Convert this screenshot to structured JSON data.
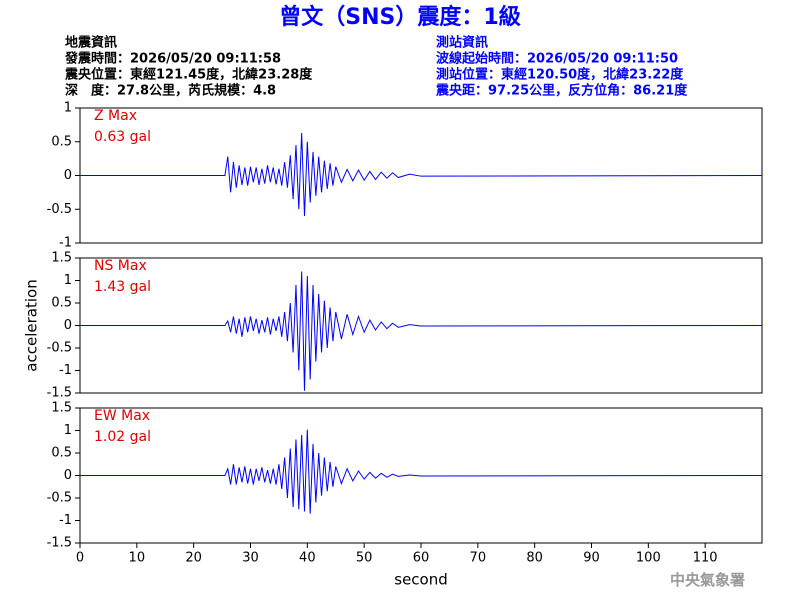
{
  "header": {
    "title": "曾文（SNS）震度：1級",
    "left": [
      "地震資訊",
      "發震時間：2026/05/20 09:11:58",
      "震央位置：東經121.45度，北緯23.28度",
      "深　度：27.8公里，芮氏規模：4.8"
    ],
    "right": [
      "測站資訊",
      "波線起始時間：2026/05/20 09:11:50",
      "測站位置：東經120.50度，北緯23.22度",
      "震央距：97.25公里，反方位角：86.21度"
    ],
    "footer": "中央氣象署"
  },
  "chart_data": [
    {
      "type": "line",
      "annotations": [
        "Z Max",
        "0.63 gal"
      ],
      "color": "#0000ff",
      "x": [
        0,
        25.5,
        26,
        26.5,
        27,
        27.5,
        28,
        28.5,
        29,
        29.5,
        30,
        30.5,
        31,
        31.5,
        32,
        32.5,
        33,
        33.5,
        34,
        34.5,
        35,
        35.5,
        36,
        36.5,
        37,
        37.5,
        38,
        38.5,
        39,
        39.5,
        40,
        40.5,
        41,
        41.5,
        42,
        42.5,
        43,
        43.5,
        44,
        44.5,
        45,
        46,
        47,
        48,
        49,
        50,
        51,
        52,
        53,
        54,
        55,
        56,
        58,
        60,
        120
      ],
      "values": [
        0,
        0,
        0.28,
        -0.25,
        0.2,
        -0.18,
        0.15,
        -0.14,
        0.12,
        -0.15,
        0.13,
        -0.1,
        0.12,
        -0.14,
        0.1,
        -0.12,
        0.15,
        -0.1,
        0.12,
        -0.13,
        0.1,
        -0.15,
        0.2,
        -0.18,
        0.3,
        -0.35,
        0.45,
        -0.5,
        0.63,
        -0.6,
        0.5,
        -0.4,
        0.35,
        -0.3,
        0.28,
        -0.25,
        0.22,
        -0.2,
        0.18,
        -0.15,
        0.13,
        -0.1,
        0.09,
        -0.08,
        0.08,
        -0.07,
        0.06,
        -0.06,
        0.05,
        -0.04,
        0.04,
        -0.03,
        0.02,
        -0.01,
        0
      ],
      "xlim": [
        0,
        120
      ],
      "ylim": [
        -1,
        1
      ],
      "yticks": [
        -1,
        -0.5,
        0,
        0.5,
        1
      ]
    },
    {
      "type": "line",
      "annotations": [
        "NS Max",
        "1.43 gal"
      ],
      "color": "#0000ff",
      "ylabel": "acceleration",
      "x": [
        0,
        25.5,
        26,
        26.5,
        27,
        27.5,
        28,
        28.5,
        29,
        29.5,
        30,
        30.5,
        31,
        31.5,
        32,
        32.5,
        33,
        33.5,
        34,
        34.5,
        35,
        35.5,
        36,
        36.5,
        37,
        37.5,
        38,
        38.5,
        39,
        39.5,
        40,
        40.5,
        41,
        41.5,
        42,
        42.5,
        43,
        43.5,
        44,
        44.5,
        45,
        46,
        47,
        48,
        49,
        50,
        51,
        52,
        53,
        54,
        55,
        56,
        58,
        60,
        120
      ],
      "values": [
        0,
        0,
        0.1,
        -0.15,
        0.2,
        -0.18,
        0.15,
        -0.25,
        0.18,
        -0.15,
        0.2,
        -0.12,
        0.15,
        -0.18,
        0.12,
        -0.15,
        0.18,
        -0.2,
        0.15,
        -0.12,
        0.2,
        -0.25,
        0.3,
        -0.35,
        0.5,
        -0.6,
        0.9,
        -1.0,
        1.2,
        -1.45,
        1.1,
        -1.2,
        0.9,
        -0.8,
        0.7,
        -0.6,
        0.55,
        -0.5,
        0.4,
        -0.35,
        0.3,
        -0.3,
        0.25,
        -0.2,
        0.2,
        -0.15,
        0.12,
        -0.1,
        0.08,
        -0.07,
        0.05,
        -0.04,
        0.02,
        -0.01,
        0
      ],
      "xlim": [
        0,
        120
      ],
      "ylim": [
        -1.5,
        1.5
      ],
      "yticks": [
        -1.5,
        -1,
        -0.5,
        0,
        0.5,
        1,
        1.5
      ]
    },
    {
      "type": "line",
      "annotations": [
        "EW Max",
        "1.02 gal"
      ],
      "color": "#0000ff",
      "xlabel": "second",
      "x": [
        0,
        25.5,
        26,
        26.5,
        27,
        27.5,
        28,
        28.5,
        29,
        29.5,
        30,
        30.5,
        31,
        31.5,
        32,
        32.5,
        33,
        33.5,
        34,
        34.5,
        35,
        35.5,
        36,
        36.5,
        37,
        37.5,
        38,
        38.5,
        39,
        39.5,
        40,
        40.5,
        41,
        41.5,
        42,
        42.5,
        43,
        43.5,
        44,
        44.5,
        45,
        46,
        47,
        48,
        49,
        50,
        51,
        52,
        53,
        54,
        55,
        56,
        58,
        60,
        120
      ],
      "values": [
        0,
        0,
        0.15,
        -0.2,
        0.25,
        -0.2,
        0.18,
        -0.15,
        0.2,
        -0.18,
        0.15,
        -0.2,
        0.15,
        -0.12,
        0.18,
        -0.15,
        0.12,
        -0.18,
        0.15,
        -0.2,
        0.25,
        -0.3,
        0.4,
        -0.5,
        0.6,
        -0.7,
        0.8,
        -0.75,
        0.9,
        -0.8,
        1.02,
        -0.85,
        0.7,
        -0.6,
        0.5,
        -0.45,
        0.4,
        -0.35,
        0.3,
        -0.25,
        0.2,
        -0.18,
        0.15,
        -0.12,
        0.1,
        -0.08,
        0.07,
        -0.06,
        0.05,
        -0.04,
        0.03,
        -0.02,
        0.01,
        -0.01,
        0
      ],
      "xlim": [
        0,
        120
      ],
      "ylim": [
        -1.5,
        1.5
      ],
      "yticks": [
        -1.5,
        -1,
        -0.5,
        0,
        0.5,
        1,
        1.5
      ],
      "xticks": [
        0,
        10,
        20,
        30,
        40,
        50,
        60,
        70,
        80,
        90,
        100,
        110
      ]
    }
  ]
}
